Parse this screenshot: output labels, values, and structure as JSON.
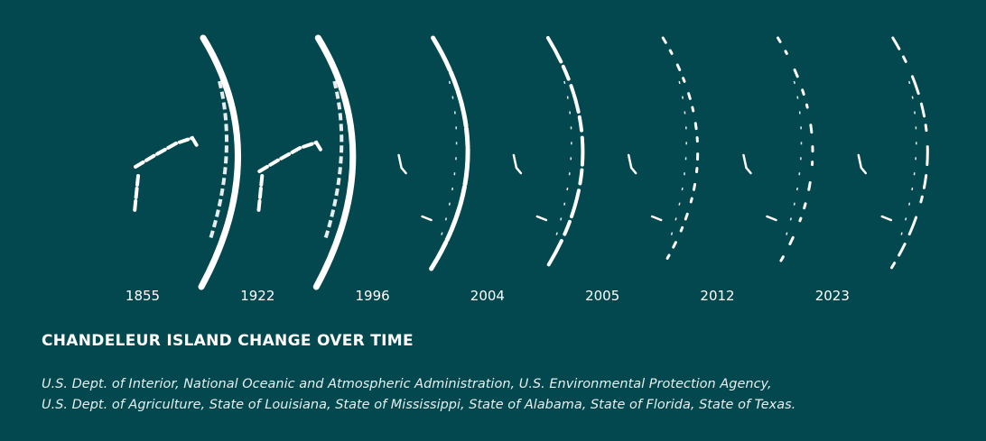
{
  "maps": [
    {
      "year": "1855"
    },
    {
      "year": "1922"
    },
    {
      "year": "1996"
    },
    {
      "year": "2004"
    },
    {
      "year": "2005"
    },
    {
      "year": "2012"
    },
    {
      "year": "2023"
    }
  ],
  "title": "CHANDELEUR ISLAND CHANGE OVER TIME",
  "sources": [
    "U.S. Dept. of Interior, National Oceanic and Atmospheric Administration, U.S. Environmental Protection Agency,",
    "U.S. Dept. of Agriculture, State of Louisiana, State of Mississippi, State of Alabama, State of Florida, State of Texas."
  ]
}
